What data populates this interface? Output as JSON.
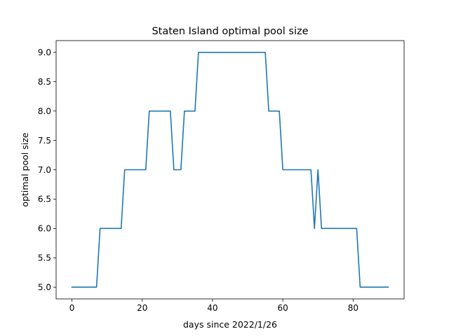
{
  "chart_data": {
    "type": "line",
    "title": "Staten Island optimal pool size",
    "xlabel": "days since 2022/1/26",
    "ylabel": "optimal pool size",
    "xlim": [
      -4.5,
      94.5
    ],
    "ylim": [
      4.8,
      9.2
    ],
    "xticks": [
      0,
      20,
      40,
      60,
      80
    ],
    "yticks": [
      5.0,
      5.5,
      6.0,
      6.5,
      7.0,
      7.5,
      8.0,
      8.5,
      9.0
    ],
    "ytick_labels": [
      "5.0",
      "5.5",
      "6.0",
      "6.5",
      "7.0",
      "7.5",
      "8.0",
      "8.5",
      "9.0"
    ],
    "grid": false,
    "line_color": "#1f77b4",
    "series": [
      {
        "x": [
          0,
          1,
          2,
          3,
          4,
          5,
          6,
          7,
          8,
          9,
          10,
          11,
          12,
          13,
          14,
          15,
          16,
          17,
          18,
          19,
          20,
          21,
          22,
          23,
          24,
          25,
          26,
          27,
          28,
          29,
          30,
          31,
          32,
          33,
          34,
          35,
          36,
          37,
          38,
          39,
          40,
          41,
          42,
          43,
          44,
          45,
          46,
          47,
          48,
          49,
          50,
          51,
          52,
          53,
          54,
          55,
          56,
          57,
          58,
          59,
          60,
          61,
          62,
          63,
          64,
          65,
          66,
          67,
          68,
          69,
          70,
          71,
          72,
          73,
          74,
          75,
          76,
          77,
          78,
          79,
          80,
          81,
          82,
          83,
          84,
          85,
          86,
          87,
          88,
          89,
          90
        ],
        "y": [
          5,
          5,
          5,
          5,
          5,
          5,
          5,
          5,
          6,
          6,
          6,
          6,
          6,
          6,
          6,
          7,
          7,
          7,
          7,
          7,
          7,
          7,
          8,
          8,
          8,
          8,
          8,
          8,
          8,
          7,
          7,
          7,
          8,
          8,
          8,
          8,
          9,
          9,
          9,
          9,
          9,
          9,
          9,
          9,
          9,
          9,
          9,
          9,
          9,
          9,
          9,
          9,
          9,
          9,
          9,
          9,
          8,
          8,
          8,
          8,
          7,
          7,
          7,
          7,
          7,
          7,
          7,
          7,
          7,
          6,
          7,
          6,
          6,
          6,
          6,
          6,
          6,
          6,
          6,
          6,
          6,
          6,
          5,
          5,
          5,
          5,
          5,
          5,
          5,
          5,
          5
        ]
      }
    ]
  }
}
